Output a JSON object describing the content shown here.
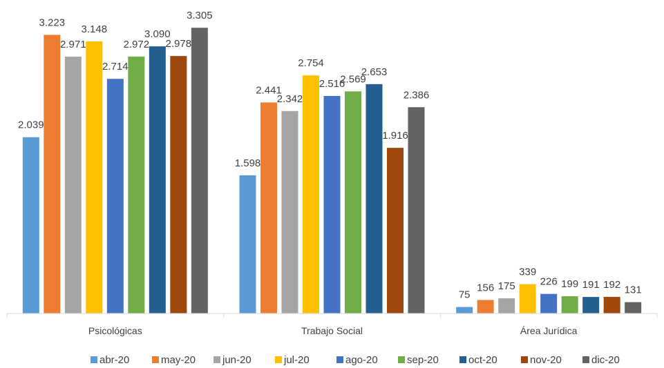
{
  "chart_data": {
    "type": "bar",
    "categories": [
      "Psicológicas",
      "Trabajo Social",
      "Área Jurídica"
    ],
    "series": [
      {
        "name": "abr-20",
        "color": "#5b9bd5",
        "values": [
          2039,
          1598,
          75
        ],
        "labels": [
          "2.039",
          "1.598",
          "75"
        ]
      },
      {
        "name": "may-20",
        "color": "#ed7d31",
        "values": [
          3223,
          2441,
          156
        ],
        "labels": [
          "3.223",
          "2.441",
          "156"
        ]
      },
      {
        "name": "jun-20",
        "color": "#a5a5a5",
        "values": [
          2971,
          2342,
          175
        ],
        "labels": [
          "2.971",
          "2.342",
          "175"
        ]
      },
      {
        "name": "jul-20",
        "color": "#ffc000",
        "values": [
          3148,
          2754,
          339
        ],
        "labels": [
          "3.148",
          "2.754",
          "339"
        ]
      },
      {
        "name": "ago-20",
        "color": "#4472c4",
        "values": [
          2714,
          2516,
          226
        ],
        "labels": [
          "2.714",
          "2.516",
          "226"
        ]
      },
      {
        "name": "sep-20",
        "color": "#70ad47",
        "values": [
          2972,
          2569,
          199
        ],
        "labels": [
          "2.972",
          "2.569",
          "199"
        ]
      },
      {
        "name": "oct-20",
        "color": "#255e91",
        "values": [
          3090,
          2653,
          191
        ],
        "labels": [
          "3.090",
          "2.653",
          "191"
        ]
      },
      {
        "name": "nov-20",
        "color": "#9e480e",
        "values": [
          2978,
          1916,
          192
        ],
        "labels": [
          "2.978",
          "1.916",
          "192"
        ]
      },
      {
        "name": "dic-20",
        "color": "#636363",
        "values": [
          3305,
          2386,
          131
        ],
        "labels": [
          "3.305",
          "2.386",
          "131"
        ]
      }
    ],
    "ylim": [
      0,
      3400
    ],
    "grid": false,
    "legend": "bottom"
  }
}
